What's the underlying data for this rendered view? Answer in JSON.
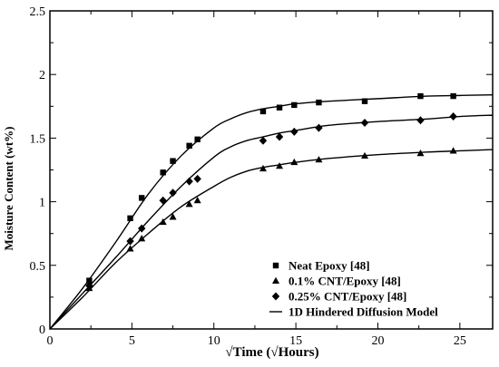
{
  "chart_data": {
    "type": "scatter",
    "xlabel": "√Time (√Hours)",
    "ylabel": "Moisture Content (wt%)",
    "xlim": [
      0,
      27
    ],
    "ylim": [
      0,
      2.5
    ],
    "xticks": [
      0,
      5,
      10,
      15,
      20,
      25
    ],
    "yticks": [
      0,
      0.5,
      1,
      1.5,
      2,
      2.5
    ],
    "xtick_labels": [
      "0",
      "5",
      "10",
      "15",
      "20",
      "25"
    ],
    "ytick_labels": [
      "0",
      "0.5",
      "1",
      "1.5",
      "2",
      "2.5"
    ],
    "legend_position": "bottom-right",
    "grid": false,
    "series": [
      {
        "name": "Neat Epoxy [48]",
        "marker": "square",
        "x": [
          2.4,
          4.9,
          5.6,
          6.9,
          7.5,
          8.5,
          9.0,
          13.0,
          14.0,
          14.9,
          16.4,
          19.2,
          22.6,
          24.6
        ],
        "y": [
          0.38,
          0.87,
          1.03,
          1.23,
          1.32,
          1.44,
          1.49,
          1.71,
          1.74,
          1.76,
          1.78,
          1.79,
          1.83,
          1.83
        ]
      },
      {
        "name": "0.1% CNT/Epoxy [48]",
        "marker": "triangle",
        "x": [
          2.4,
          4.9,
          5.6,
          6.9,
          7.5,
          8.5,
          9.0,
          13.0,
          14.0,
          14.9,
          16.4,
          19.2,
          22.6,
          24.6
        ],
        "y": [
          0.32,
          0.63,
          0.71,
          0.84,
          0.88,
          0.98,
          1.01,
          1.26,
          1.28,
          1.31,
          1.33,
          1.36,
          1.38,
          1.4
        ]
      },
      {
        "name": "0.25% CNT/Epoxy [48]",
        "marker": "diamond",
        "x": [
          2.4,
          4.9,
          5.6,
          6.9,
          7.5,
          8.5,
          9.0,
          13.0,
          14.0,
          14.9,
          16.4,
          19.2,
          22.6,
          24.6
        ],
        "y": [
          0.34,
          0.69,
          0.79,
          1.01,
          1.07,
          1.16,
          1.18,
          1.48,
          1.51,
          1.55,
          1.58,
          1.62,
          1.64,
          1.67
        ]
      },
      {
        "name": "1D Hindered Diffusion Model",
        "marker": "line",
        "curves": [
          {
            "x": [
              0,
              2,
              4,
              6,
              8,
              10,
              11,
              12,
              13,
              14,
              15,
              17,
              20,
              23,
              25,
              27
            ],
            "y": [
              0,
              0.32,
              0.68,
              1.06,
              1.36,
              1.58,
              1.65,
              1.7,
              1.73,
              1.75,
              1.77,
              1.79,
              1.81,
              1.83,
              1.835,
              1.84
            ]
          },
          {
            "x": [
              0,
              2,
              4,
              6,
              8,
              10,
              11,
              12,
              13,
              14,
              15,
              17,
              20,
              23,
              25,
              27
            ],
            "y": [
              0,
              0.28,
              0.56,
              0.85,
              1.12,
              1.35,
              1.43,
              1.48,
              1.51,
              1.54,
              1.56,
              1.6,
              1.63,
              1.65,
              1.67,
              1.68
            ]
          },
          {
            "x": [
              0,
              2,
              4,
              6,
              8,
              10,
              11,
              12,
              13,
              14,
              15,
              17,
              20,
              23,
              25,
              27
            ],
            "y": [
              0,
              0.25,
              0.52,
              0.75,
              0.96,
              1.12,
              1.19,
              1.24,
              1.27,
              1.29,
              1.31,
              1.34,
              1.37,
              1.39,
              1.4,
              1.41
            ]
          }
        ]
      }
    ]
  }
}
